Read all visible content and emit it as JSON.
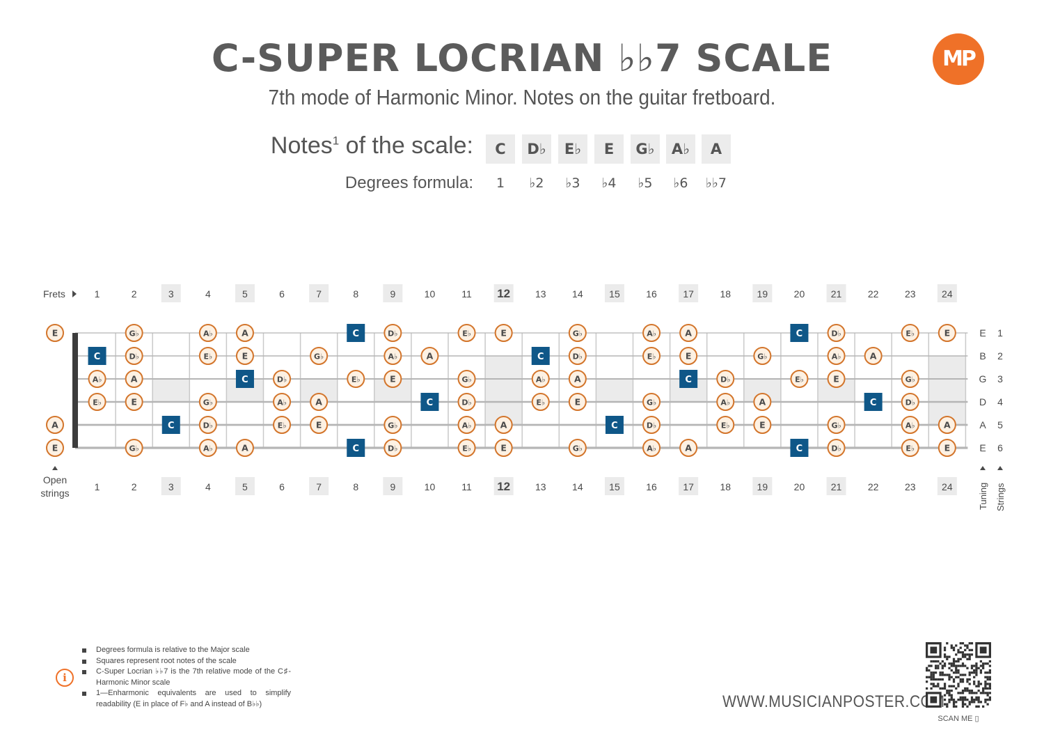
{
  "title": "C-SUPER LOCRIAN ♭♭7 SCALE",
  "subtitle": "7th mode of Harmonic Minor. Notes on the guitar fretboard.",
  "logo": "MP",
  "notes_label": "Notes",
  "notes_sup": "1",
  "notes_label_rest": " of the scale:",
  "degrees_label": "Degrees formula:",
  "notes": [
    "C",
    "D♭",
    "E♭",
    "E",
    "G♭",
    "A♭",
    "A"
  ],
  "degrees": [
    "1",
    "♭2",
    "♭3",
    "♭4",
    "♭5",
    "♭6",
    "♭♭7"
  ],
  "frets_label": "Frets",
  "fret_numbers": [
    "1",
    "2",
    "3",
    "4",
    "5",
    "6",
    "7",
    "8",
    "9",
    "10",
    "11",
    "12",
    "13",
    "14",
    "15",
    "16",
    "17",
    "18",
    "19",
    "20",
    "21",
    "22",
    "23",
    "24"
  ],
  "marked_frets": [
    3,
    5,
    7,
    9,
    12,
    15,
    17,
    19,
    21,
    24
  ],
  "open_strings_label": [
    "Open",
    "strings"
  ],
  "tuning_label": "Tuning",
  "strings_label": "Strings",
  "strings": [
    {
      "tuning": "E",
      "number": "1",
      "open": "E"
    },
    {
      "tuning": "B",
      "number": "2",
      "open": ""
    },
    {
      "tuning": "G",
      "number": "3",
      "open": ""
    },
    {
      "tuning": "D",
      "number": "4",
      "open": ""
    },
    {
      "tuning": "A",
      "number": "5",
      "open": "A"
    },
    {
      "tuning": "E",
      "number": "6",
      "open": "E"
    }
  ],
  "root_note": "C",
  "fretboard": [
    [
      "",
      "G♭",
      "",
      "A♭",
      "A",
      "",
      "",
      "C",
      "D♭",
      "",
      "E♭",
      "E",
      "",
      "G♭",
      "",
      "A♭",
      "A",
      "",
      "",
      "C",
      "D♭",
      "",
      "E♭",
      "E"
    ],
    [
      "C",
      "D♭",
      "",
      "E♭",
      "E",
      "",
      "G♭",
      "",
      "A♭",
      "A",
      "",
      "",
      "C",
      "D♭",
      "",
      "E♭",
      "E",
      "",
      "G♭",
      "",
      "A♭",
      "A",
      "",
      ""
    ],
    [
      "A♭",
      "A",
      "",
      "",
      "C",
      "D♭",
      "",
      "E♭",
      "E",
      "",
      "G♭",
      "",
      "A♭",
      "A",
      "",
      "",
      "C",
      "D♭",
      "",
      "E♭",
      "E",
      "",
      "G♭",
      ""
    ],
    [
      "E♭",
      "E",
      "",
      "G♭",
      "",
      "A♭",
      "A",
      "",
      "",
      "C",
      "D♭",
      "",
      "E♭",
      "E",
      "",
      "G♭",
      "",
      "A♭",
      "A",
      "",
      "",
      "C",
      "D♭",
      ""
    ],
    [
      "",
      "",
      "C",
      "D♭",
      "",
      "E♭",
      "E",
      "",
      "G♭",
      "",
      "A♭",
      "A",
      "",
      "",
      "C",
      "D♭",
      "",
      "E♭",
      "E",
      "",
      "G♭",
      "",
      "A♭",
      "A"
    ],
    [
      "",
      "G♭",
      "",
      "A♭",
      "A",
      "",
      "",
      "C",
      "D♭",
      "",
      "E♭",
      "E",
      "",
      "G♭",
      "",
      "A♭",
      "A",
      "",
      "",
      "C",
      "D♭",
      "",
      "E♭",
      "E"
    ]
  ],
  "colors": {
    "note_ring": "#d3752b",
    "note_fill": "#fdf1e3",
    "root_fill": "#0f5788",
    "marker": "#ebebeb",
    "text": "#4a4a4a",
    "accent": "#ef7128"
  },
  "footnotes": [
    "Degrees formula is relative to the Major scale",
    "Squares represent root notes of the scale",
    "C-Super Locrian ♭♭7 is the 7th relative mode of the C♯-Harmonic Minor scale",
    "1—Enharmonic equivalents are used to simplify readability (E in place of F♭ and A instead of B♭♭)"
  ],
  "info_icon": "i",
  "website": "WWW.MUSICIANPOSTER.COM",
  "scan_label": "SCAN ME ▯"
}
